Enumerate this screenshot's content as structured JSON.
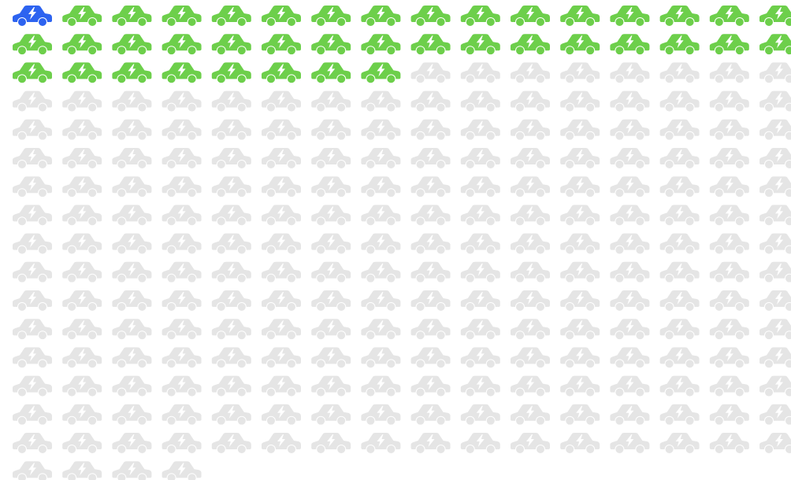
{
  "chart_data": {
    "type": "pictogram",
    "values": [
      1,
      39,
      220
    ],
    "colors": [
      "#2d63f0",
      "#6dcf4b",
      "#e5e5e5"
    ]
  }
}
